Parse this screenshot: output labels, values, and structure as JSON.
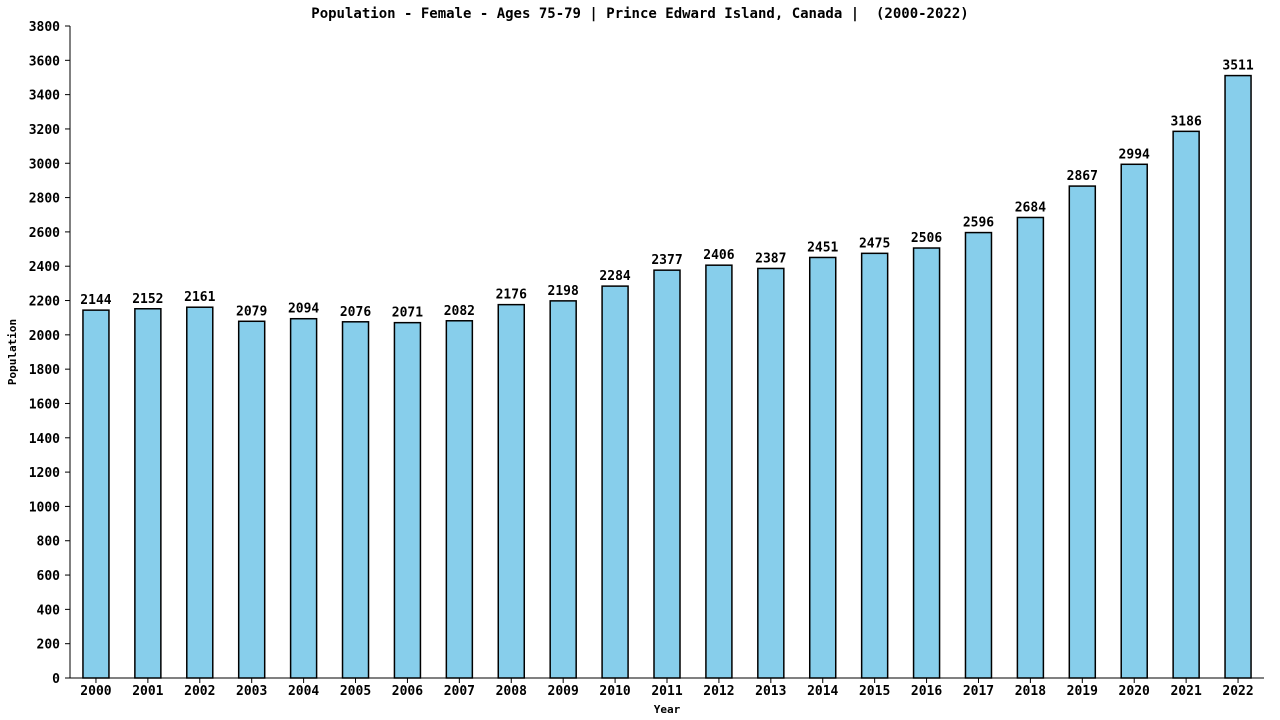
{
  "chart_data": {
    "type": "bar",
    "title": "Population - Female - Ages 75-79 | Prince Edward Island, Canada |  (2000-2022)",
    "xlabel": "Year",
    "ylabel": "Population",
    "ylim": [
      0,
      3800
    ],
    "ytick_step": 200,
    "grid": false,
    "bar_color": "#87ceeb",
    "bar_edge_color": "#000000",
    "categories": [
      "2000",
      "2001",
      "2002",
      "2003",
      "2004",
      "2005",
      "2006",
      "2007",
      "2008",
      "2009",
      "2010",
      "2011",
      "2012",
      "2013",
      "2014",
      "2015",
      "2016",
      "2017",
      "2018",
      "2019",
      "2020",
      "2021",
      "2022"
    ],
    "values": [
      2144,
      2152,
      2161,
      2079,
      2094,
      2076,
      2071,
      2082,
      2176,
      2198,
      2284,
      2377,
      2406,
      2387,
      2451,
      2475,
      2506,
      2596,
      2684,
      2867,
      2994,
      3186,
      3511
    ]
  }
}
